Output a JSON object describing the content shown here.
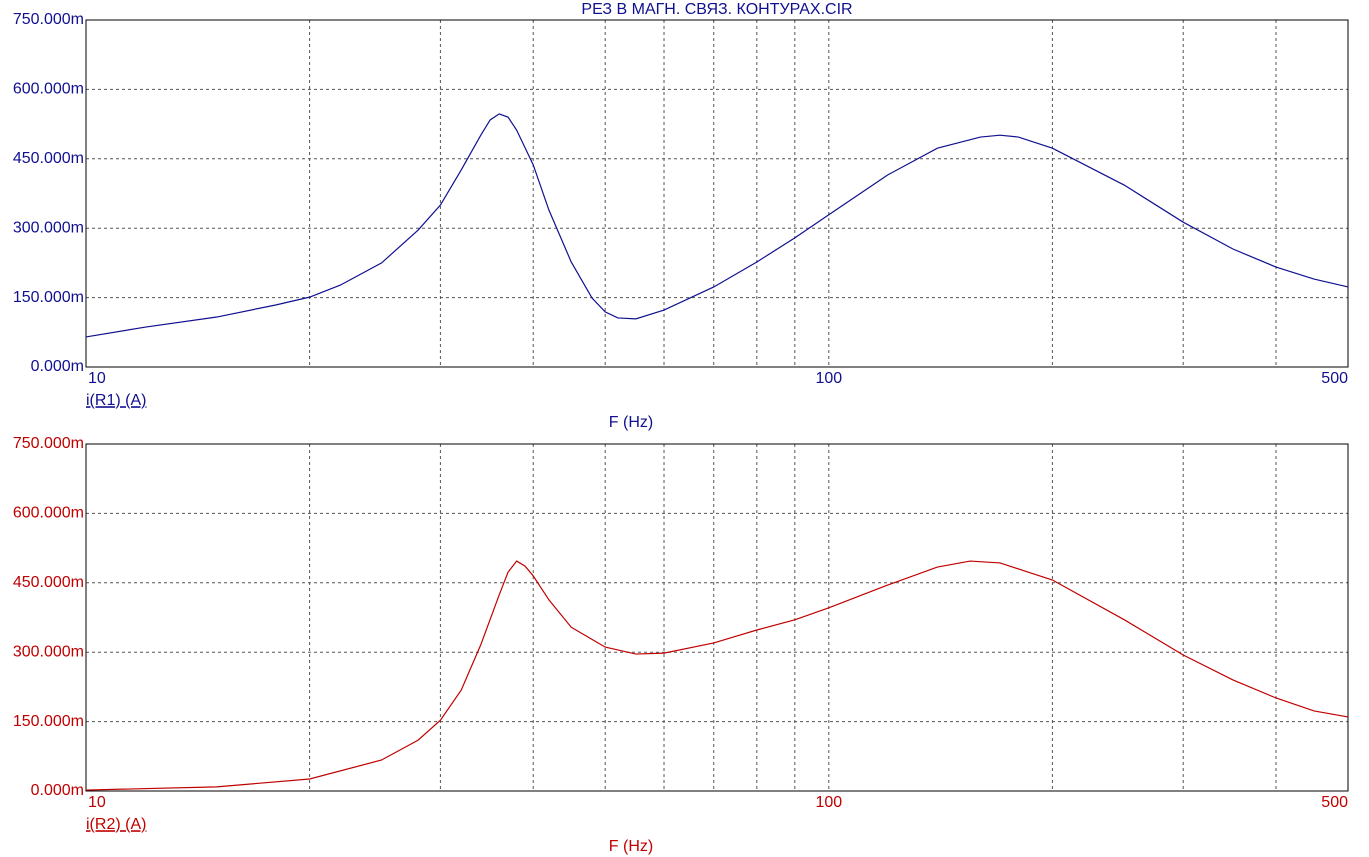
{
  "chart_data": [
    {
      "type": "line",
      "title": "РЕЗ В МАГН. СВЯЗ. КОНТУРАХ.CIR",
      "xlabel": "F (Hz)",
      "xscale": "log",
      "x": [
        10,
        12,
        15,
        18,
        20,
        22,
        25,
        28,
        30,
        32,
        34,
        35,
        36,
        37,
        38,
        40,
        42,
        45,
        48,
        50,
        52,
        55,
        60,
        70,
        80,
        90,
        100,
        120,
        140,
        160,
        170,
        180,
        200,
        250,
        300,
        350,
        400,
        450,
        500
      ],
      "series": [
        {
          "name": "i(R1) (A)",
          "color": "#101090",
          "values": [
            0.065,
            0.086,
            0.108,
            0.134,
            0.151,
            0.177,
            0.225,
            0.296,
            0.35,
            0.426,
            0.501,
            0.534,
            0.547,
            0.54,
            0.512,
            0.437,
            0.339,
            0.227,
            0.149,
            0.119,
            0.106,
            0.104,
            0.123,
            0.173,
            0.227,
            0.279,
            0.329,
            0.415,
            0.473,
            0.497,
            0.501,
            0.497,
            0.473,
            0.393,
            0.313,
            0.255,
            0.216,
            0.19,
            0.173
          ]
        }
      ],
      "xlim": [
        10,
        500
      ],
      "xticks": [
        10,
        100,
        500
      ],
      "xminor": [
        20,
        30,
        40,
        50,
        60,
        70,
        80,
        90,
        200,
        300,
        400
      ],
      "ylim": [
        0,
        0.75
      ],
      "yticks": [
        {
          "value": 0,
          "label": "0.000m"
        },
        {
          "value": 0.15,
          "label": "150.000m"
        },
        {
          "value": 0.3,
          "label": "300.000m"
        },
        {
          "value": 0.45,
          "label": "450.000m"
        },
        {
          "value": 0.6,
          "label": "600.000m"
        },
        {
          "value": 0.75,
          "label": "750.000m"
        }
      ],
      "grid": true
    },
    {
      "type": "line",
      "xlabel": "F (Hz)",
      "xscale": "log",
      "x": [
        10,
        15,
        20,
        25,
        28,
        30,
        32,
        34,
        36,
        37,
        38,
        39,
        40,
        42,
        45,
        50,
        55,
        60,
        70,
        80,
        90,
        100,
        120,
        140,
        155,
        170,
        200,
        250,
        300,
        350,
        400,
        450,
        500
      ],
      "series": [
        {
          "name": "i(R2) (A)",
          "color": "#c00000",
          "values": [
            0.002,
            0.009,
            0.026,
            0.067,
            0.11,
            0.153,
            0.218,
            0.316,
            0.424,
            0.473,
            0.497,
            0.486,
            0.465,
            0.413,
            0.354,
            0.311,
            0.296,
            0.298,
            0.32,
            0.348,
            0.37,
            0.396,
            0.445,
            0.484,
            0.497,
            0.493,
            0.456,
            0.37,
            0.294,
            0.24,
            0.201,
            0.173,
            0.16
          ]
        }
      ],
      "xlim": [
        10,
        500
      ],
      "xticks": [
        10,
        100,
        500
      ],
      "xminor": [
        20,
        30,
        40,
        50,
        60,
        70,
        80,
        90,
        200,
        300,
        400
      ],
      "ylim": [
        0,
        0.75
      ],
      "yticks": [
        {
          "value": 0,
          "label": "0.000m"
        },
        {
          "value": 0.15,
          "label": "150.000m"
        },
        {
          "value": 0.3,
          "label": "300.000m"
        },
        {
          "value": 0.45,
          "label": "450.000m"
        },
        {
          "value": 0.6,
          "label": "600.000m"
        },
        {
          "value": 0.75,
          "label": "750.000m"
        }
      ],
      "grid": true
    }
  ]
}
